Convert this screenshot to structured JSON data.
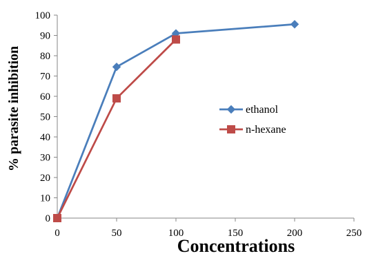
{
  "chart_data": {
    "type": "line",
    "title": "",
    "xlabel": "Concentrations",
    "ylabel": "% parasite inhibition",
    "xlim": [
      0,
      250
    ],
    "ylim": [
      0,
      100
    ],
    "x_ticks": [
      0,
      50,
      100,
      150,
      200,
      250
    ],
    "y_ticks": [
      0,
      10,
      20,
      30,
      40,
      50,
      60,
      70,
      80,
      90,
      100
    ],
    "grid": false,
    "legend_position": "right",
    "series": [
      {
        "name": "ethanol",
        "color": "#4a7ebb",
        "marker": "diamond",
        "x": [
          0,
          50,
          100,
          200
        ],
        "y": [
          0,
          74.5,
          91,
          95.5
        ]
      },
      {
        "name": "n-hexane",
        "color": "#be4b48",
        "marker": "square",
        "x": [
          0,
          50,
          100
        ],
        "y": [
          0,
          59,
          88
        ]
      }
    ]
  }
}
